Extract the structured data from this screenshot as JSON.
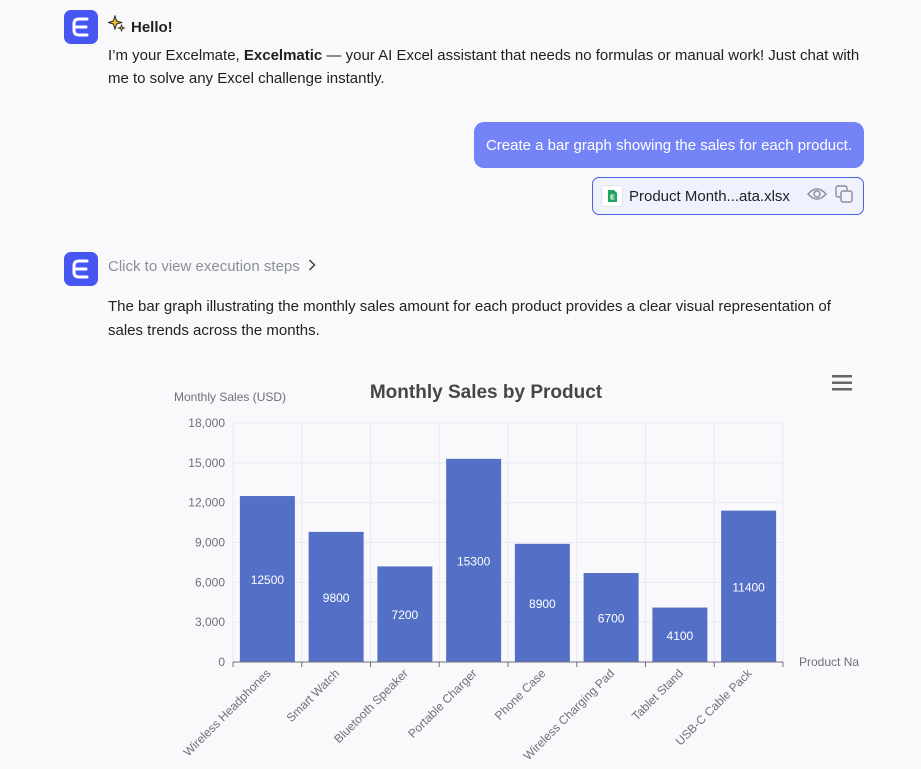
{
  "assistant_greeting": {
    "hello": "Hello!",
    "intro_prefix": "I’m your Excelmate, ",
    "intro_bold": "Excelmatic",
    "intro_suffix": " — your AI Excel assistant that needs no formulas or manual work! Just chat with me to solve any Excel challenge instantly."
  },
  "user_message": {
    "text": "Create a bar graph showing the sales for each product.",
    "attachment": {
      "file_name": "Product Month...ata.xlsx",
      "file_icon": "excel-file-icon",
      "actions": [
        "eye-icon",
        "copy-icon"
      ]
    }
  },
  "assistant_reply": {
    "steps_link": "Click to view execution steps",
    "summary": "The bar graph illustrating the monthly sales amount for each product provides a clear visual representation of sales trends across the months."
  },
  "colors": {
    "brand": "#4557f0",
    "user_bubble": "#7484f7",
    "bar": "#5470c6"
  },
  "chart_data": {
    "type": "bar",
    "title": "Monthly Sales by Product",
    "ylabel": "Monthly Sales (USD)",
    "xlabel": "Product Na",
    "categories": [
      "Wireless Headphones",
      "Smart Watch",
      "Bluetooth Speaker",
      "Portable Charger",
      "Phone Case",
      "Wireless Charging Pad",
      "Tablet Stand",
      "USB-C Cable Pack"
    ],
    "values": [
      12500,
      9800,
      7200,
      15300,
      8900,
      6700,
      4100,
      11400
    ],
    "data_labels": [
      "12500",
      "9800",
      "7200",
      "15300",
      "8900",
      "6700",
      "4100",
      "11400"
    ],
    "ylim": [
      0,
      18000
    ],
    "yticks": [
      0,
      3000,
      6000,
      9000,
      12000,
      15000,
      18000
    ],
    "ytick_labels": [
      "0",
      "3,000",
      "6,000",
      "9,000",
      "12,000",
      "15,000",
      "18,000"
    ],
    "grid": true,
    "menu_icon": "hamburger-menu-icon"
  }
}
